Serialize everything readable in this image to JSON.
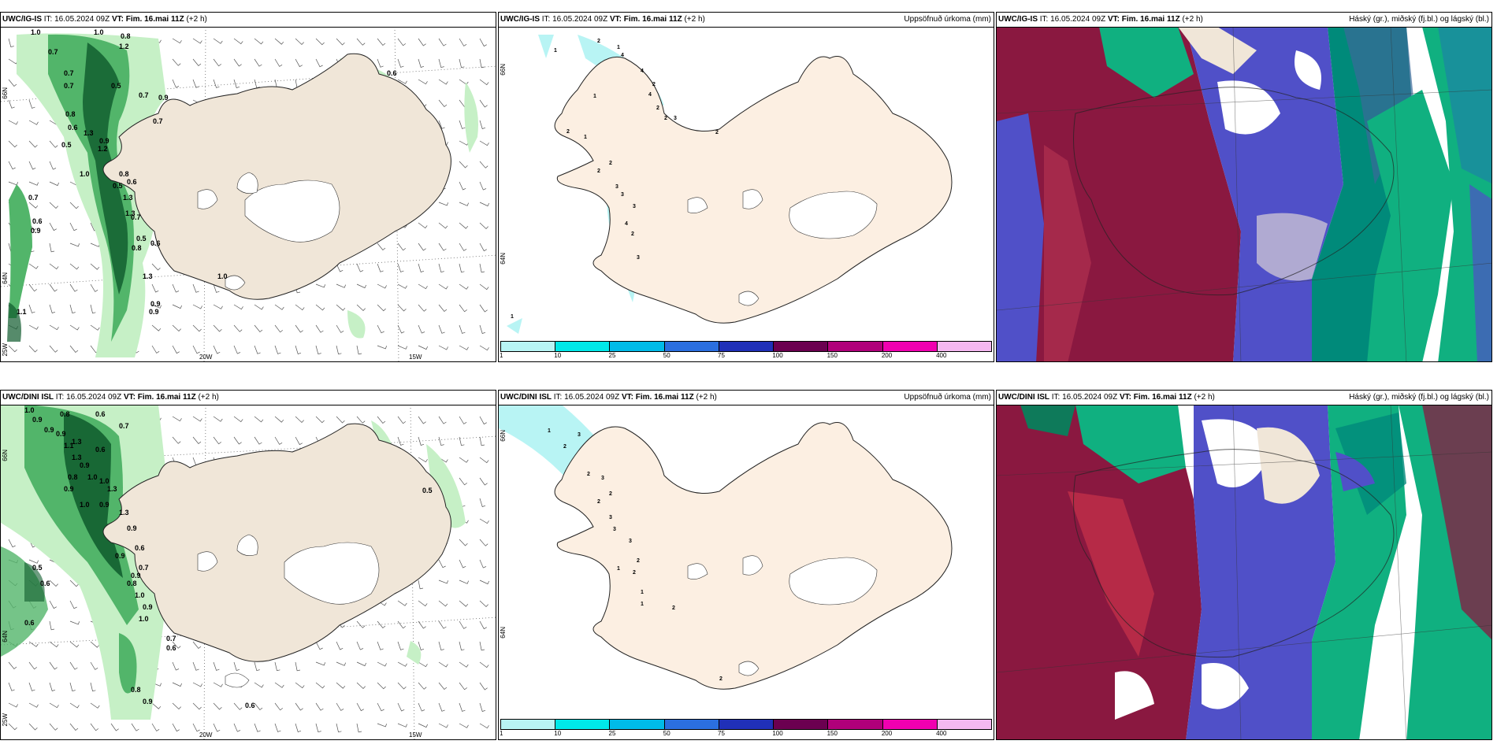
{
  "panels": {
    "top_left": {
      "model": "UWC/IG-IS",
      "it": "IT: 16.05.2024 09Z",
      "vt": "VT: Fim. 16.mai 11Z",
      "lead": "(+2 h)",
      "right_title": "",
      "lat_labels": [
        "66N",
        "64N"
      ],
      "lon_labels": [
        "25W",
        "20W",
        "15W"
      ],
      "contour_labels": [
        "1.0",
        "0.7",
        "1.0",
        "0.8",
        "1.2",
        "0.7",
        "0.7",
        "0.5",
        "0.7",
        "0.9",
        "0.8",
        "0.7",
        "1.3",
        "0.9",
        "1.2",
        "0.6",
        "0.5",
        "0.8",
        "0.5",
        "1.3",
        "1.3",
        "0.7",
        "0.7",
        "0.6",
        "0.9",
        "0.6",
        "0.5",
        "0.8",
        "1.3",
        "1.0",
        "0.9",
        "0.9",
        "1.1",
        "0.6",
        "1.0",
        "0.6"
      ]
    },
    "top_middle": {
      "model": "UWC/IG-IS",
      "it": "IT: 16.05.2024 09Z",
      "vt": "VT: Fim. 16.mai 11Z",
      "lead": "(+2 h)",
      "right_title": "Uppsöfnuð úrkoma (mm)",
      "lat_labels": [
        "66N",
        "64N"
      ],
      "contour_labels": [
        "2",
        "1",
        "1",
        "4",
        "4",
        "2",
        "1",
        "4",
        "2",
        "3",
        "2",
        "2",
        "1",
        "2",
        "2",
        "3",
        "3",
        "3",
        "4",
        "2",
        "3",
        "1",
        "2"
      ]
    },
    "top_right": {
      "model": "UWC/IG-IS",
      "it": "IT: 16.05.2024 09Z",
      "vt": "VT: Fim. 16.mai 11Z",
      "lead": "(+2 h)",
      "right_title": "Háský (gr.), miðský (fj.bl.) og lágský (bl.)"
    },
    "bottom_left": {
      "model": "UWC/DINI ISL",
      "it": "IT: 16.05.2024 09Z",
      "vt": "VT: Fim. 16.mai 11Z",
      "lead": "(+2 h)",
      "right_title": "",
      "lat_labels": [
        "66N",
        "64N"
      ],
      "lon_labels": [
        "25W",
        "20W",
        "15W"
      ],
      "contour_labels": [
        "1.0",
        "0.9",
        "0.8",
        "0.6",
        "0.9",
        "0.7",
        "0.9",
        "1.3",
        "0.6",
        "1.1",
        "1.3",
        "0.9",
        "0.8",
        "1.0",
        "0.9",
        "1.0",
        "1.3",
        "1.0",
        "0.9",
        "1.3",
        "0.9",
        "0.6",
        "0.9",
        "0.7",
        "0.8",
        "1.0",
        "0.9",
        "0.9",
        "1.0",
        "0.7",
        "0.6",
        "0.5",
        "0.6",
        "0.6",
        "0.8",
        "0.9",
        "0.6",
        "0.5"
      ]
    },
    "bottom_middle": {
      "model": "UWC/DINI ISL",
      "it": "IT: 16.05.2024 09Z",
      "vt": "VT: Fim. 16.mai 11Z",
      "lead": "(+2 h)",
      "right_title": "Uppsöfnuð úrkoma (mm)",
      "lat_labels": [
        "66N",
        "64N"
      ],
      "contour_labels": [
        "1",
        "3",
        "2",
        "2",
        "3",
        "2",
        "2",
        "3",
        "3",
        "3",
        "2",
        "1",
        "2",
        "1",
        "1",
        "2",
        "2"
      ]
    },
    "bottom_right": {
      "model": "UWC/DINI ISL",
      "it": "IT: 16.05.2024 09Z",
      "vt": "VT: Fim. 16.mai 11Z",
      "lead": "(+2 h)",
      "right_title": "Háský (gr.), miðský (fj.bl.) og lágský (bl.)"
    }
  },
  "colorbar": {
    "labels": [
      "1",
      "10",
      "25",
      "50",
      "75",
      "100",
      "150",
      "200",
      "400"
    ],
    "colors": [
      "#b8f4f4",
      "#00e8e8",
      "#00bbe8",
      "#2b6fe0",
      "#2030b8",
      "#6b0050",
      "#b0007a",
      "#f000b0",
      "#f4b8f0"
    ]
  },
  "colors": {
    "land": "#f0e6d8",
    "land_precip": "#fcefe2",
    "precip_light": "#c6f0c6",
    "precip_mid": "#52b56a",
    "precip_dark": "#0e5a2c",
    "ice": "#ffffff",
    "cloud_high_green": "#10b080",
    "cloud_mid_blue": "#5050c8",
    "cloud_low_red": "#8a1840"
  }
}
